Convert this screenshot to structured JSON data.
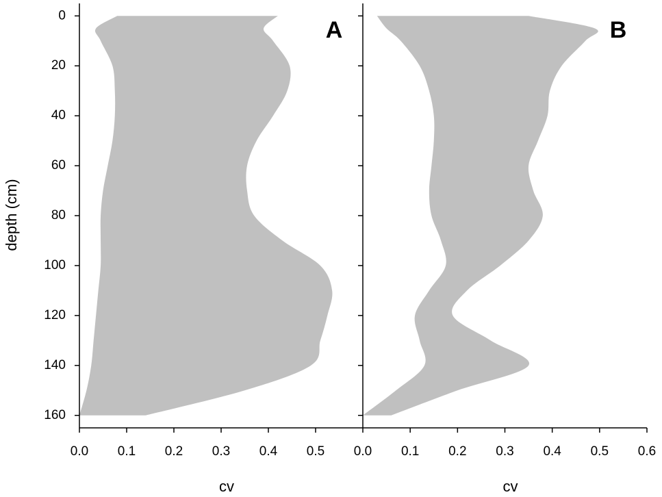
{
  "chart_data": [
    {
      "type": "band",
      "label": "A",
      "xlabel": "cv",
      "ylabel": "depth (cm)",
      "color": "#c0c0c0",
      "y_inverted": true,
      "y": [
        0,
        5,
        10,
        20,
        30,
        40,
        50,
        60,
        70,
        80,
        90,
        100,
        110,
        120,
        130,
        140,
        150,
        160
      ],
      "lower": [
        0.08,
        0.035,
        0.045,
        0.07,
        0.075,
        0.075,
        0.07,
        0.06,
        0.05,
        0.045,
        0.045,
        0.045,
        0.04,
        0.035,
        0.03,
        0.025,
        0.015,
        0.0
      ],
      "upper": [
        0.42,
        0.39,
        0.41,
        0.445,
        0.44,
        0.41,
        0.375,
        0.355,
        0.355,
        0.37,
        0.43,
        0.51,
        0.535,
        0.525,
        0.51,
        0.49,
        0.35,
        0.14
      ],
      "xlim": [
        0,
        0.6
      ],
      "ylim": [
        -5,
        165
      ],
      "xticks": [
        {
          "value": 0,
          "label": "0.0"
        },
        0.1,
        0.2,
        0.3,
        0.4,
        0.5
      ],
      "yticks": [
        0,
        20,
        40,
        60,
        80,
        100,
        120,
        140,
        160
      ]
    },
    {
      "type": "band",
      "label": "B",
      "xlabel": "cv",
      "color": "#c0c0c0",
      "y_inverted": true,
      "y": [
        0,
        5,
        10,
        20,
        30,
        40,
        50,
        60,
        70,
        80,
        90,
        100,
        110,
        120,
        130,
        140,
        150,
        160
      ],
      "lower": [
        0.03,
        0.05,
        0.08,
        0.12,
        0.14,
        0.15,
        0.15,
        0.145,
        0.14,
        0.145,
        0.165,
        0.175,
        0.14,
        0.11,
        0.12,
        0.13,
        0.07,
        0.0
      ],
      "upper": [
        0.35,
        0.49,
        0.47,
        0.42,
        0.395,
        0.39,
        0.37,
        0.35,
        0.36,
        0.38,
        0.35,
        0.29,
        0.22,
        0.19,
        0.27,
        0.35,
        0.2,
        0.06
      ],
      "xlim": [
        0,
        0.6
      ],
      "ylim": [
        -5,
        165
      ],
      "xticks": [
        {
          "value": 0,
          "label": "0.0"
        },
        0.1,
        0.2,
        0.3,
        0.4,
        0.5,
        0.6
      ],
      "yticks": [
        0,
        20,
        40,
        60,
        80,
        100,
        120,
        140,
        160
      ]
    }
  ]
}
